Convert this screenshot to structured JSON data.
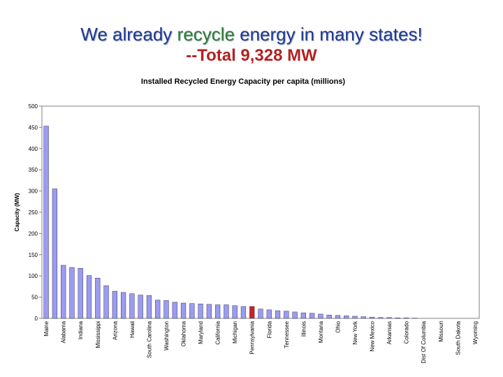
{
  "slide": {
    "title_prefix": "We already ",
    "title_highlight": "recycle",
    "title_suffix": " energy in many states!",
    "subtitle": "--Total 9,328 MW"
  },
  "colors": {
    "title": "#1f3a93",
    "highlight": "#2e7d32",
    "subtitle": "#b22222",
    "bar": "#9b9bf0",
    "bar_highlight": "#cc2222"
  },
  "chart_data": {
    "type": "bar",
    "title": "Installed Recycled Energy Capacity per capita (millions)",
    "xlabel": "",
    "ylabel": "Capacity (MW)",
    "ylim": [
      0,
      500
    ],
    "yticks": [
      0,
      50,
      100,
      150,
      200,
      250,
      300,
      350,
      400,
      450,
      500
    ],
    "ytick_labels": [
      "0",
      "50",
      "100",
      "150",
      "200",
      "250",
      "300",
      "350",
      "400",
      "450",
      "500"
    ],
    "grid": false,
    "categories": [
      "Maine",
      "",
      "Alabama",
      "",
      "Indiana",
      "",
      "Mississippi",
      "",
      "Arizona",
      "",
      "Hawaii",
      "",
      "South Carolina",
      "",
      "Washington",
      "",
      "Oklahoma",
      "",
      "Maryland",
      "",
      "California",
      "",
      "Michigan",
      "",
      "Pennsylvania",
      "",
      "Florida",
      "",
      "Tennessee",
      "",
      "Illinois",
      "",
      "Montana",
      "",
      "Ohio",
      "",
      "New York",
      "",
      "New Mexico",
      "",
      "Arkansas",
      "",
      "Colorado",
      "",
      "Dist Of Columbia",
      "",
      "Missouri",
      "",
      "South Dakota",
      "",
      "Wyoming"
    ],
    "values": [
      453,
      305,
      125,
      120,
      118,
      101,
      95,
      77,
      64,
      61,
      58,
      55,
      54,
      43,
      42,
      38,
      36,
      35,
      34,
      33,
      32,
      32,
      30,
      28,
      28,
      22,
      20,
      18,
      17,
      15,
      13,
      12,
      10,
      8,
      7,
      6,
      5,
      4,
      3,
      2,
      2,
      1,
      1,
      0.5,
      0,
      0,
      0,
      0,
      0,
      0,
      0
    ],
    "highlight_category": "Pennsylvania"
  }
}
